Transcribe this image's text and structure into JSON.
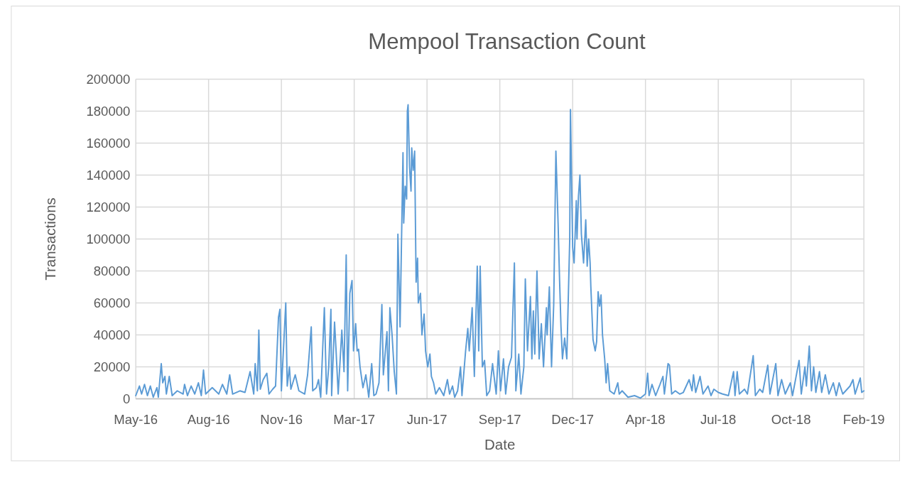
{
  "chart_data": {
    "type": "line",
    "title": "Mempool Transaction Count",
    "xlabel": "Date",
    "ylabel": "Transactions",
    "xlim": [
      "2016-05-08",
      "2019-02-02"
    ],
    "xticks": [
      {
        "value": "2016-05-08",
        "label": "May-16"
      },
      {
        "value": "2016-08-16",
        "label": "Aug-16"
      },
      {
        "value": "2016-11-24",
        "label": "Nov-16"
      },
      {
        "value": "2017-03-04",
        "label": "Mar-17"
      },
      {
        "value": "2017-06-12",
        "label": "Jun-17"
      },
      {
        "value": "2017-09-20",
        "label": "Sep-17"
      },
      {
        "value": "2017-12-29",
        "label": "Dec-17"
      },
      {
        "value": "2018-04-08",
        "label": "Apr-18"
      },
      {
        "value": "2018-07-17",
        "label": "Jul-18"
      },
      {
        "value": "2018-10-25",
        "label": "Oct-18"
      },
      {
        "value": "2019-02-02",
        "label": "Feb-19"
      }
    ],
    "ylim": [
      0,
      200000
    ],
    "yticks": [
      0,
      20000,
      40000,
      60000,
      80000,
      100000,
      120000,
      140000,
      160000,
      180000,
      200000
    ],
    "grid": true,
    "marker": "none",
    "line_style": "solid",
    "x": [
      "2016-05-08",
      "2016-05-13",
      "2016-05-16",
      "2016-05-20",
      "2016-05-24",
      "2016-05-28",
      "2016-06-01",
      "2016-06-06",
      "2016-06-08",
      "2016-06-12",
      "2016-06-14",
      "2016-06-17",
      "2016-06-19",
      "2016-06-23",
      "2016-06-27",
      "2016-07-04",
      "2016-07-12",
      "2016-07-14",
      "2016-07-18",
      "2016-07-23",
      "2016-07-28",
      "2016-08-02",
      "2016-08-06",
      "2016-08-09",
      "2016-08-12",
      "2016-08-21",
      "2016-08-30",
      "2016-09-04",
      "2016-09-10",
      "2016-09-14",
      "2016-09-18",
      "2016-09-28",
      "2016-10-05",
      "2016-10-12",
      "2016-10-17",
      "2016-10-19",
      "2016-10-22",
      "2016-10-24",
      "2016-10-26",
      "2016-10-30",
      "2016-11-04",
      "2016-11-07",
      "2016-11-12",
      "2016-11-16",
      "2016-11-20",
      "2016-11-22",
      "2016-11-24",
      "2016-11-30",
      "2016-12-02",
      "2016-12-05",
      "2016-12-07",
      "2016-12-13",
      "2016-12-18",
      "2016-12-26",
      "2016-12-30",
      "2017-01-04",
      "2017-01-06",
      "2017-01-11",
      "2017-01-14",
      "2017-01-17",
      "2017-01-22",
      "2017-01-25",
      "2017-01-28",
      "2017-01-31",
      "2017-02-01",
      "2017-02-05",
      "2017-02-07",
      "2017-02-10",
      "2017-02-15",
      "2017-02-18",
      "2017-02-21",
      "2017-02-23",
      "2017-02-26",
      "2017-03-01",
      "2017-03-03",
      "2017-03-06",
      "2017-03-08",
      "2017-03-10",
      "2017-03-12",
      "2017-03-16",
      "2017-03-20",
      "2017-03-24",
      "2017-03-28",
      "2017-03-31",
      "2017-04-03",
      "2017-04-07",
      "2017-04-11",
      "2017-04-13",
      "2017-04-18",
      "2017-04-20",
      "2017-04-22",
      "2017-04-25",
      "2017-04-28",
      "2017-05-01",
      "2017-05-03",
      "2017-05-06",
      "2017-05-10",
      "2017-05-11",
      "2017-05-13",
      "2017-05-15",
      "2017-05-16",
      "2017-05-17",
      "2017-05-19",
      "2017-05-21",
      "2017-05-22",
      "2017-05-24",
      "2017-05-26",
      "2017-05-28",
      "2017-05-30",
      "2017-05-31",
      "2017-06-03",
      "2017-06-05",
      "2017-06-08",
      "2017-06-10",
      "2017-06-13",
      "2017-06-16",
      "2017-06-18",
      "2017-06-21",
      "2017-06-24",
      "2017-06-29",
      "2017-07-05",
      "2017-07-10",
      "2017-07-13",
      "2017-07-17",
      "2017-07-20",
      "2017-07-24",
      "2017-07-28",
      "2017-07-30",
      "2017-08-04",
      "2017-08-07",
      "2017-08-09",
      "2017-08-13",
      "2017-08-16",
      "2017-08-20",
      "2017-08-22",
      "2017-08-24",
      "2017-08-27",
      "2017-08-30",
      "2017-09-02",
      "2017-09-06",
      "2017-09-10",
      "2017-09-15",
      "2017-09-18",
      "2017-09-21",
      "2017-09-25",
      "2017-09-28",
      "2017-10-02",
      "2017-10-06",
      "2017-10-10",
      "2017-10-12",
      "2017-10-16",
      "2017-10-19",
      "2017-10-23",
      "2017-10-25",
      "2017-10-28",
      "2017-11-01",
      "2017-11-03",
      "2017-11-05",
      "2017-11-07",
      "2017-11-10",
      "2017-11-13",
      "2017-11-16",
      "2017-11-19",
      "2017-11-23",
      "2017-11-24",
      "2017-11-27",
      "2017-11-30",
      "2017-12-03",
      "2017-12-06",
      "2017-12-09",
      "2017-12-11",
      "2017-12-13",
      "2017-12-15",
      "2017-12-18",
      "2017-12-21",
      "2017-12-25",
      "2017-12-26",
      "2017-12-29",
      "2017-12-31",
      "2018-01-02",
      "2018-01-03",
      "2018-01-04",
      "2018-01-06",
      "2018-01-08",
      "2018-01-10",
      "2018-01-13",
      "2018-01-15",
      "2018-01-16",
      "2018-01-18",
      "2018-01-20",
      "2018-01-22",
      "2018-01-23",
      "2018-01-26",
      "2018-01-29",
      "2018-01-31",
      "2018-02-02",
      "2018-02-04",
      "2018-02-06",
      "2018-02-08",
      "2018-02-11",
      "2018-02-13",
      "2018-02-15",
      "2018-02-18",
      "2018-02-24",
      "2018-03-01",
      "2018-03-03",
      "2018-03-07",
      "2018-03-15",
      "2018-03-24",
      "2018-04-01",
      "2018-04-08",
      "2018-04-11",
      "2018-04-13",
      "2018-04-17",
      "2018-04-22",
      "2018-04-28",
      "2018-05-02",
      "2018-05-04",
      "2018-05-09",
      "2018-05-11",
      "2018-05-14",
      "2018-05-19",
      "2018-05-25",
      "2018-05-30",
      "2018-06-07",
      "2018-06-11",
      "2018-06-13",
      "2018-06-16",
      "2018-06-22",
      "2018-06-26",
      "2018-07-03",
      "2018-07-07",
      "2018-07-11",
      "2018-07-17",
      "2018-07-23",
      "2018-07-31",
      "2018-08-07",
      "2018-08-09",
      "2018-08-12",
      "2018-08-15",
      "2018-08-22",
      "2018-08-26",
      "2018-09-03",
      "2018-09-06",
      "2018-09-12",
      "2018-09-16",
      "2018-09-23",
      "2018-09-26",
      "2018-10-04",
      "2018-10-07",
      "2018-10-12",
      "2018-10-17",
      "2018-10-24",
      "2018-10-27",
      "2018-11-05",
      "2018-11-08",
      "2018-11-13",
      "2018-11-15",
      "2018-11-19",
      "2018-11-22",
      "2018-11-25",
      "2018-11-28",
      "2018-12-03",
      "2018-12-06",
      "2018-12-11",
      "2018-12-16",
      "2018-12-22",
      "2018-12-26",
      "2018-12-30",
      "2019-01-04",
      "2019-01-14",
      "2019-01-18",
      "2019-01-21",
      "2019-01-28",
      "2019-01-30",
      "2019-02-02"
    ],
    "series": [
      {
        "color": "#5b9bd5",
        "values": [
          2000,
          8000,
          3000,
          9000,
          2000,
          8000,
          1000,
          7000,
          1000,
          22000,
          10000,
          14000,
          3000,
          14000,
          2000,
          5000,
          3000,
          9000,
          2000,
          8000,
          3000,
          10000,
          2000,
          18000,
          3000,
          7000,
          3000,
          9000,
          3000,
          15000,
          3000,
          5000,
          4000,
          17000,
          3000,
          22000,
          5000,
          43000,
          6000,
          12000,
          16000,
          3000,
          6000,
          8000,
          51000,
          56000,
          5000,
          60000,
          8000,
          20000,
          6000,
          15000,
          5000,
          3000,
          15000,
          45000,
          5000,
          7000,
          12000,
          1000,
          57000,
          3000,
          20000,
          56000,
          2000,
          48000,
          31000,
          3000,
          43000,
          17000,
          90000,
          5000,
          66000,
          74000,
          30000,
          47000,
          30000,
          31000,
          20000,
          7000,
          15000,
          1000,
          22000,
          2000,
          3000,
          10000,
          59000,
          15000,
          42000,
          5000,
          57000,
          40000,
          17000,
          3000,
          103000,
          45000,
          154000,
          110000,
          133000,
          125000,
          180000,
          184000,
          145000,
          130000,
          157000,
          143000,
          155000,
          73000,
          88000,
          60000,
          66000,
          40000,
          53000,
          30000,
          20000,
          28000,
          14000,
          10000,
          3000,
          7000,
          2000,
          12000,
          3000,
          8000,
          1000,
          5000,
          20000,
          2000,
          30000,
          44000,
          30000,
          57000,
          14000,
          83000,
          30000,
          83000,
          20000,
          24000,
          2000,
          5000,
          22000,
          3000,
          30000,
          5000,
          25000,
          3000,
          20000,
          26000,
          85000,
          5000,
          28000,
          3000,
          20000,
          75000,
          30000,
          64000,
          25000,
          55000,
          28000,
          80000,
          25000,
          47000,
          20000,
          57000,
          40000,
          70000,
          20000,
          59000,
          155000,
          110000,
          75000,
          45000,
          25000,
          38000,
          25000,
          100000,
          181000,
          95000,
          85000,
          110000,
          124000,
          100000,
          127000,
          140000,
          103000,
          85000,
          103000,
          112000,
          83000,
          100000,
          85000,
          70000,
          37000,
          30000,
          36000,
          67000,
          58000,
          65000,
          40000,
          25000,
          10000,
          22000,
          5000,
          3000,
          10000,
          3000,
          5000,
          1000,
          2000,
          500,
          3000,
          16000,
          2000,
          9000,
          2000,
          9000,
          14000,
          3000,
          22000,
          21000,
          3000,
          5000,
          3000,
          4000,
          12000,
          5000,
          15000,
          4000,
          14000,
          3000,
          8000,
          2000,
          6000,
          4000,
          3000,
          2000,
          17000,
          2000,
          17000,
          3000,
          6000,
          3000,
          27000,
          2000,
          6000,
          4000,
          21000,
          3000,
          22000,
          2000,
          12000,
          3000,
          10000,
          2000,
          24000,
          3000,
          20000,
          8000,
          33000,
          5000,
          20000,
          4000,
          17000,
          4000,
          15000,
          3000,
          10000,
          2000,
          10000,
          3000,
          8000,
          12000,
          3000,
          13000,
          4000,
          5000
        ]
      }
    ]
  }
}
